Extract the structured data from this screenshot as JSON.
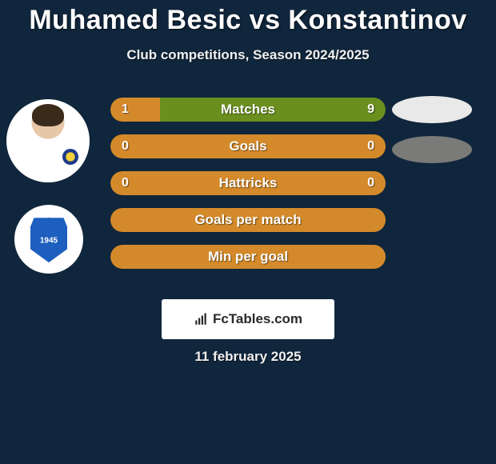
{
  "title": "Muhamed Besic vs Konstantinov",
  "subtitle": "Club competitions, Season 2024/2025",
  "date": "11 february 2025",
  "brand": {
    "label": "FcTables.com"
  },
  "club": {
    "year": "1945"
  },
  "colors": {
    "accent_orange": "#d48a2a",
    "accent_green": "#6a8f1f",
    "bg": "#10263c"
  },
  "bars": [
    {
      "label": "Matches",
      "left_value": "1",
      "right_value": "9",
      "left_pct": 18,
      "right_pct": 82,
      "left_color": "#d48a2a",
      "right_color": "#6a8f1f",
      "show_values": true
    },
    {
      "label": "Goals",
      "left_value": "0",
      "right_value": "0",
      "left_pct": 100,
      "right_pct": 0,
      "left_color": "#d48a2a",
      "right_color": "#6a8f1f",
      "show_values": true
    },
    {
      "label": "Hattricks",
      "left_value": "0",
      "right_value": "0",
      "left_pct": 100,
      "right_pct": 0,
      "left_color": "#d48a2a",
      "right_color": "#6a8f1f",
      "show_values": true
    },
    {
      "label": "Goals per match",
      "left_value": "",
      "right_value": "",
      "left_pct": 100,
      "right_pct": 0,
      "left_color": "#d48a2a",
      "right_color": "#6a8f1f",
      "show_values": false
    },
    {
      "label": "Min per goal",
      "left_value": "",
      "right_value": "",
      "left_pct": 100,
      "right_pct": 0,
      "left_color": "#d48a2a",
      "right_color": "#6a8f1f",
      "show_values": false
    }
  ]
}
